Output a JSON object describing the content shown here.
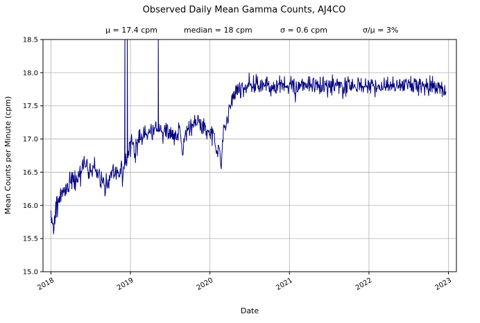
{
  "chart_data": {
    "type": "line",
    "title": "Observed Daily Mean Gamma Counts, AJ4CO",
    "stats": [
      {
        "text": "μ = 17.4 cpm"
      },
      {
        "text": "median = 18 cpm"
      },
      {
        "text": "σ = 0.6 cpm"
      },
      {
        "text": "σ/μ = 3%"
      }
    ],
    "xlabel": "Date",
    "ylabel": "Mean Counts per Minute (cpm)",
    "xlim": [
      2017.9,
      2023.1
    ],
    "ylim": [
      15.0,
      18.5
    ],
    "xticks": [
      2018,
      2019,
      2020,
      2021,
      2022,
      2023
    ],
    "yticks": [
      15.0,
      15.5,
      16.0,
      16.5,
      17.0,
      17.5,
      18.0,
      18.5
    ],
    "ytick_labels": [
      "15.0",
      "15.5",
      "16.0",
      "16.5",
      "17.0",
      "17.5",
      "18.0",
      "18.5"
    ],
    "line_color": "#000080",
    "grid_color": "#b0b0b0",
    "grid": true,
    "legend": "none",
    "series": [
      {
        "name": "observed daily mean gamma counts",
        "x_start": 2018.0,
        "x_end": 2022.97,
        "step_days": 2,
        "noise_sd": 0.07,
        "noise_sd_early": 0.09,
        "early_until": 2019.2,
        "trend_anchors": [
          [
            2018.0,
            15.85
          ],
          [
            2018.03,
            15.72
          ],
          [
            2018.06,
            15.95
          ],
          [
            2018.1,
            16.05
          ],
          [
            2018.15,
            16.2
          ],
          [
            2018.22,
            16.33
          ],
          [
            2018.3,
            16.38
          ],
          [
            2018.38,
            16.5
          ],
          [
            2018.45,
            16.55
          ],
          [
            2018.5,
            16.52
          ],
          [
            2018.55,
            16.6
          ],
          [
            2018.6,
            16.45
          ],
          [
            2018.65,
            16.35
          ],
          [
            2018.7,
            16.22
          ],
          [
            2018.73,
            16.35
          ],
          [
            2018.78,
            16.5
          ],
          [
            2018.85,
            16.45
          ],
          [
            2018.9,
            16.55
          ],
          [
            2018.95,
            16.65
          ],
          [
            2019.0,
            16.95
          ],
          [
            2019.04,
            17.0
          ],
          [
            2019.06,
            16.7
          ],
          [
            2019.09,
            17.0
          ],
          [
            2019.15,
            17.05
          ],
          [
            2019.25,
            17.1
          ],
          [
            2019.35,
            17.15
          ],
          [
            2019.45,
            17.08
          ],
          [
            2019.55,
            17.05
          ],
          [
            2019.63,
            17.15
          ],
          [
            2019.66,
            16.72
          ],
          [
            2019.69,
            17.1
          ],
          [
            2019.75,
            17.2
          ],
          [
            2019.85,
            17.25
          ],
          [
            2019.95,
            17.15
          ],
          [
            2020.0,
            17.08
          ],
          [
            2020.05,
            17.1
          ],
          [
            2020.08,
            16.7
          ],
          [
            2020.11,
            17.0
          ],
          [
            2020.14,
            16.6
          ],
          [
            2020.17,
            17.1
          ],
          [
            2020.22,
            17.3
          ],
          [
            2020.27,
            17.55
          ],
          [
            2020.32,
            17.7
          ],
          [
            2020.4,
            17.78
          ],
          [
            2020.5,
            17.82
          ],
          [
            2020.75,
            17.8
          ],
          [
            2021.0,
            17.8
          ],
          [
            2021.25,
            17.82
          ],
          [
            2021.5,
            17.8
          ],
          [
            2021.75,
            17.8
          ],
          [
            2022.0,
            17.8
          ],
          [
            2022.25,
            17.8
          ],
          [
            2022.5,
            17.82
          ],
          [
            2022.75,
            17.8
          ],
          [
            2022.95,
            17.72
          ]
        ],
        "spikes": [
          [
            2018.93,
            18.9
          ],
          [
            2018.96,
            18.7
          ],
          [
            2019.35,
            18.7
          ]
        ]
      }
    ]
  }
}
